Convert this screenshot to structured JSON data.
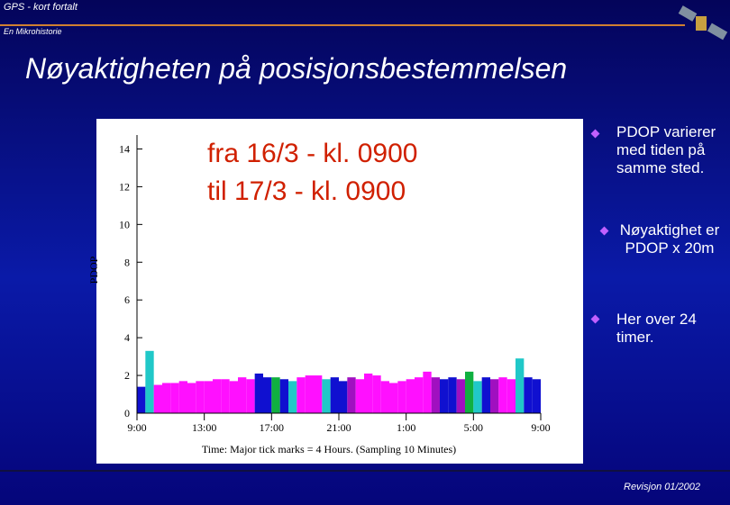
{
  "header": {
    "title": "GPS - kort fortalt",
    "subtitle": "En Mikrohistorie"
  },
  "slide_title": "Nøyaktigheten på posisjonsbestemmelsen",
  "chart_data": {
    "type": "bar",
    "annotations": [
      "fra 16/3 - kl. 0900",
      "til 17/3 - kl. 0900"
    ],
    "y_label": "PDOP",
    "x_label": "Time: Major tick marks = 4 Hours. (Sampling 10 Minutes)",
    "xlim": [
      0,
      24
    ],
    "xticks": [
      {
        "value": 0,
        "label": "9:00"
      },
      {
        "value": 4,
        "label": "13:00"
      },
      {
        "value": 8,
        "label": "17:00"
      },
      {
        "value": 12,
        "label": "21:00"
      },
      {
        "value": 16,
        "label": "1:00"
      },
      {
        "value": 20,
        "label": "5:00"
      },
      {
        "value": 24,
        "label": "9:00"
      }
    ],
    "ylim": [
      0,
      14.5
    ],
    "yticks": [
      0,
      2,
      4,
      6,
      8,
      10,
      12,
      14
    ],
    "bar_width": 0.5,
    "series": [
      {
        "x": [
          0,
          0.5,
          1,
          1.5,
          2,
          2.5,
          3,
          3.5,
          4,
          4.5,
          5,
          5.5,
          6,
          6.5,
          7,
          7.5,
          8,
          8.5,
          9,
          9.5,
          10,
          10.5,
          11,
          11.5,
          12,
          12.5,
          13,
          13.5,
          14,
          14.5,
          15,
          15.5,
          16,
          16.5,
          17,
          17.5,
          18,
          18.5,
          19,
          19.5,
          20,
          20.5,
          21,
          21.5,
          22,
          22.5,
          23,
          23.5
        ],
        "values": [
          1.4,
          3.3,
          1.5,
          1.6,
          1.6,
          1.7,
          1.6,
          1.7,
          1.7,
          1.8,
          1.8,
          1.7,
          1.9,
          1.8,
          2.1,
          1.9,
          1.9,
          1.8,
          1.7,
          1.9,
          2.0,
          2.0,
          1.8,
          1.9,
          1.7,
          1.9,
          1.8,
          2.1,
          2.0,
          1.7,
          1.6,
          1.7,
          1.8,
          1.9,
          2.2,
          1.9,
          1.8,
          1.9,
          1.8,
          2.2,
          1.7,
          1.9,
          1.8,
          1.9,
          1.8,
          2.9,
          1.9,
          1.8
        ],
        "colors": [
          "#1010d0",
          "#20c8c8",
          "#ff10ff",
          "#ff10ff",
          "#ff10ff",
          "#ff10ff",
          "#ff10ff",
          "#ff10ff",
          "#ff10ff",
          "#ff10ff",
          "#ff10ff",
          "#ff10ff",
          "#ff10ff",
          "#ff10ff",
          "#1010d0",
          "#1010d0",
          "#10b040",
          "#1010d0",
          "#20c8c8",
          "#ff10ff",
          "#ff10ff",
          "#ff10ff",
          "#20c8c8",
          "#1010d0",
          "#1010d0",
          "#a010c0",
          "#ff10ff",
          "#ff10ff",
          "#ff10ff",
          "#ff10ff",
          "#ff10ff",
          "#ff10ff",
          "#ff10ff",
          "#ff10ff",
          "#ff10ff",
          "#a010c0",
          "#1010d0",
          "#1010d0",
          "#a010c0",
          "#10b040",
          "#20c8c8",
          "#1010d0",
          "#a010c0",
          "#ff10ff",
          "#ff10ff",
          "#20c8c8",
          "#1010d0",
          "#1010d0"
        ]
      }
    ]
  },
  "bullets": [
    "PDOP varierer med tiden på samme sted.",
    "Nøyaktighet er PDOP x 20m",
    "Her over 24 timer."
  ],
  "footer": "Revisjon 01/2002"
}
